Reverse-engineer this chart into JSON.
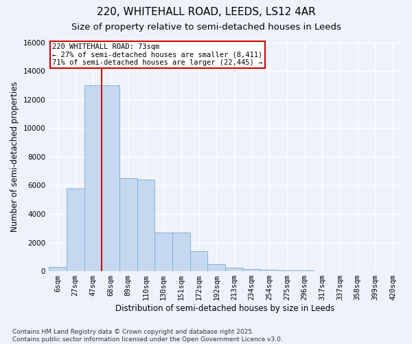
{
  "title_line1": "220, WHITEHALL ROAD, LEEDS, LS12 4AR",
  "title_line2": "Size of property relative to semi-detached houses in Leeds",
  "xlabel": "Distribution of semi-detached houses by size in Leeds",
  "ylabel": "Number of semi-detached properties",
  "categories": [
    "6sqm",
    "27sqm",
    "47sqm",
    "68sqm",
    "89sqm",
    "110sqm",
    "130sqm",
    "151sqm",
    "172sqm",
    "192sqm",
    "213sqm",
    "234sqm",
    "254sqm",
    "275sqm",
    "296sqm",
    "317sqm",
    "337sqm",
    "358sqm",
    "399sqm",
    "420sqm"
  ],
  "values": [
    300,
    5800,
    13000,
    13000,
    6500,
    6400,
    2700,
    2700,
    1400,
    500,
    250,
    150,
    100,
    70,
    30,
    10,
    5,
    3,
    2,
    1
  ],
  "bar_color": "#c5d8f0",
  "bar_edge_color": "#7aaad4",
  "bar_width": 1.0,
  "vline_x": 2.5,
  "vline_color": "#cc0000",
  "annotation_text": "220 WHITEHALL ROAD: 73sqm\n← 27% of semi-detached houses are smaller (8,411)\n71% of semi-detached houses are larger (22,445) →",
  "annotation_box_color": "#cc0000",
  "ylim": [
    0,
    16000
  ],
  "yticks": [
    0,
    2000,
    4000,
    6000,
    8000,
    10000,
    12000,
    14000,
    16000
  ],
  "footnote": "Contains HM Land Registry data © Crown copyright and database right 2025.\nContains public sector information licensed under the Open Government Licence v3.0.",
  "background_color": "#eef2fb",
  "grid_color": "#ffffff",
  "title_fontsize": 11,
  "subtitle_fontsize": 9.5,
  "axis_label_fontsize": 8.5,
  "tick_fontsize": 7.5,
  "annotation_fontsize": 7.5,
  "footnote_fontsize": 6.5
}
